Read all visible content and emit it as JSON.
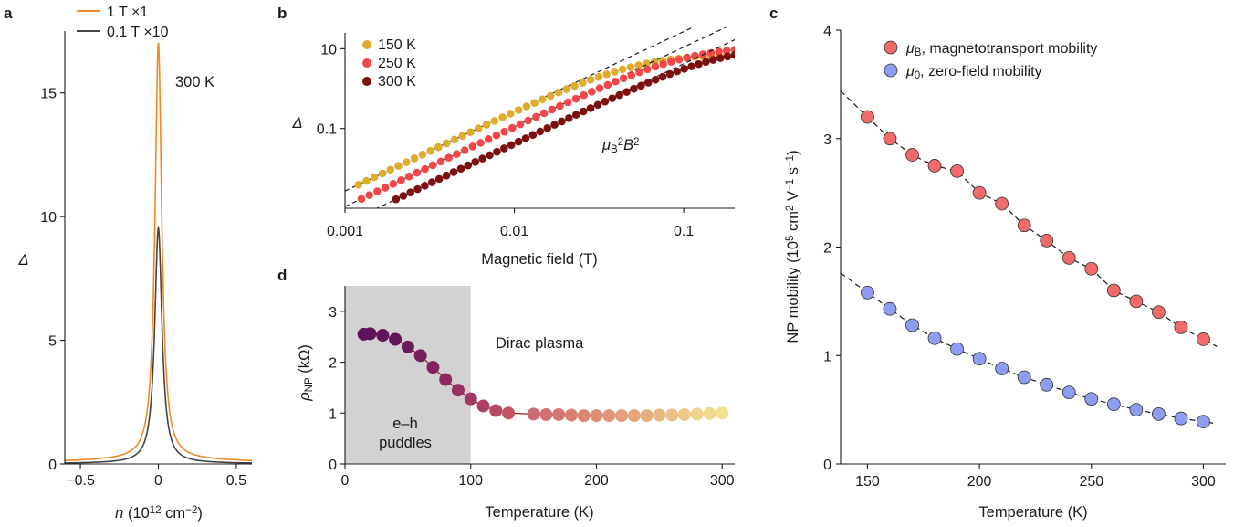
{
  "panels": {
    "a": "a",
    "b": "b",
    "c": "c",
    "d": "d"
  },
  "chart_data": [
    {
      "id": "a",
      "type": "line",
      "xlabel": "n (10^12 cm^-2)",
      "ylabel": "Δ",
      "xlim": [
        -0.6,
        0.6
      ],
      "ylim": [
        0,
        17.5
      ],
      "xticks": [
        -0.5,
        0,
        0.5
      ],
      "xtick_labels": [
        "−0.5",
        "0",
        "0.5"
      ],
      "yticks": [
        0,
        5,
        10,
        15
      ],
      "yticks_labels": [
        "0",
        "5",
        "10",
        "15"
      ],
      "annotation": "300 K",
      "series": [
        {
          "name": "1 T ×1",
          "color": "#f08a24",
          "peak": 16.8,
          "width": 0.026,
          "background": 0.22
        },
        {
          "name": "0.1 T ×10",
          "color": "#444444",
          "peak": 9.5,
          "width": 0.028,
          "background": 0.04
        }
      ]
    },
    {
      "id": "b",
      "type": "scatter",
      "xscale": "log",
      "yscale": "log",
      "xlabel": "Magnetic field (T)",
      "ylabel": "Δ",
      "xlim": [
        0.001,
        0.2
      ],
      "ylim": [
        0.001,
        25
      ],
      "xticks": [
        0.001,
        0.01,
        0.1
      ],
      "xtick_labels": [
        "0.001",
        "0.01",
        "0.1"
      ],
      "yticks": [
        0.1,
        10
      ],
      "ytick_labels": [
        "0.1",
        "10"
      ],
      "annotation": "μB²B²",
      "series": [
        {
          "name": "150 K",
          "color": "#e0ac2e",
          "coef": 2700,
          "sat": 7.5,
          "b_min": 0.0012
        },
        {
          "name": "250 K",
          "color": "#f04848",
          "coef": 1100,
          "sat": 12,
          "b_min": 0.00125
        },
        {
          "name": "300 K",
          "color": "#7c0f0f",
          "coef": 420,
          "sat": 12,
          "b_min": 0.002
        }
      ]
    },
    {
      "id": "c",
      "type": "scatter",
      "xlabel": "Temperature (K)",
      "ylabel": "NP mobility (10^5 cm^2 V^-1 s^-1)",
      "xlim": [
        138,
        310
      ],
      "ylim": [
        0,
        4
      ],
      "xticks": [
        150,
        200,
        250,
        300
      ],
      "xtick_labels": [
        "150",
        "200",
        "250",
        "300"
      ],
      "yticks": [
        0,
        1,
        2,
        3,
        4
      ],
      "ytick_labels": [
        "0",
        "1",
        "2",
        "3",
        "4"
      ],
      "x": [
        150,
        160,
        170,
        180,
        190,
        200,
        210,
        220,
        230,
        240,
        250,
        260,
        270,
        280,
        290,
        300
      ],
      "series": [
        {
          "name": "μB, magnetotransport mobility",
          "symbol": "μ",
          "sub": "B",
          "text": ", magnetotransport mobility",
          "color": "#f26a6a",
          "values": [
            3.2,
            3.0,
            2.85,
            2.75,
            2.7,
            2.5,
            2.4,
            2.2,
            2.06,
            1.9,
            1.8,
            1.6,
            1.5,
            1.4,
            1.26,
            1.15
          ]
        },
        {
          "name": "μ0, zero-field mobility",
          "symbol": "μ",
          "sub": "0",
          "text": ", zero-field mobility",
          "color": "#8f9cf2",
          "values": [
            1.58,
            1.43,
            1.28,
            1.16,
            1.06,
            0.97,
            0.88,
            0.8,
            0.73,
            0.66,
            0.6,
            0.55,
            0.5,
            0.46,
            0.42,
            0.39
          ]
        }
      ]
    },
    {
      "id": "d",
      "type": "scatter",
      "xlabel": "Temperature (K)",
      "ylabel": "ρNP (kΩ)",
      "xlim": [
        0,
        310
      ],
      "ylim": [
        0,
        3.5
      ],
      "xticks": [
        0,
        100,
        200,
        300
      ],
      "xtick_labels": [
        "0",
        "100",
        "200",
        "300"
      ],
      "yticks": [
        0,
        1,
        2,
        3
      ],
      "ytick_labels": [
        "0",
        "1",
        "2",
        "3"
      ],
      "shaded_region": [
        0,
        100
      ],
      "region_label": [
        "e–h",
        "puddles"
      ],
      "annotation": "Dirac plasma",
      "x": [
        15,
        20,
        30,
        40,
        50,
        60,
        70,
        80,
        90,
        100,
        110,
        120,
        130,
        150,
        160,
        170,
        180,
        190,
        200,
        210,
        220,
        230,
        240,
        250,
        260,
        270,
        280,
        290,
        300
      ],
      "values": [
        2.55,
        2.56,
        2.53,
        2.45,
        2.3,
        2.13,
        1.9,
        1.66,
        1.45,
        1.28,
        1.14,
        1.05,
        1.0,
        0.98,
        0.97,
        0.97,
        0.96,
        0.95,
        0.95,
        0.95,
        0.95,
        0.95,
        0.95,
        0.96,
        0.96,
        0.97,
        0.98,
        0.99,
        1.0
      ],
      "colors": [
        "#5e1358",
        "#5e1358",
        "#601459",
        "#651659",
        "#6c1a5c",
        "#751e5d",
        "#80235f",
        "#8b295f",
        "#972f61",
        "#a23762",
        "#ad4063",
        "#b74a66",
        "#c25468",
        "#ce6b6f",
        "#d27171",
        "#d57873",
        "#d87f74",
        "#db8676",
        "#dd8e77",
        "#e09679",
        "#e29e7b",
        "#e5a67d",
        "#e7af7f",
        "#e9b782",
        "#ebc085",
        "#edc988",
        "#efd28b",
        "#f0da8e",
        "#f1e292"
      ],
      "line_color": "#8b1a1a"
    }
  ]
}
